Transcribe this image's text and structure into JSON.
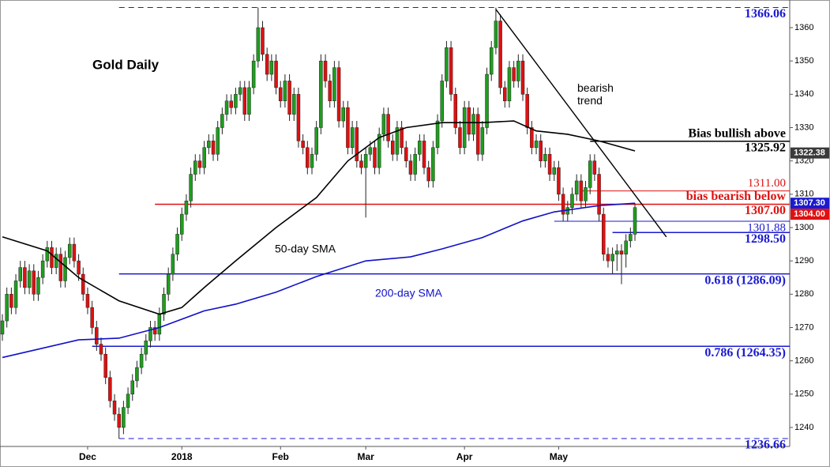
{
  "chart_data": {
    "type": "candlestick",
    "title": "Gold Daily",
    "xlim": [
      -0.53,
      175.5
    ],
    "ylim": [
      1234.3,
      1368.3
    ],
    "yticks": [
      1240,
      1250,
      1260,
      1270,
      1280,
      1290,
      1300,
      1310,
      1320,
      1330,
      1340,
      1350,
      1360
    ],
    "xticks": [
      {
        "value": 19,
        "label": "Dec"
      },
      {
        "value": 40,
        "label": "2018"
      },
      {
        "value": 62,
        "label": "Feb"
      },
      {
        "value": 81,
        "label": "Mar"
      },
      {
        "value": 103,
        "label": "Apr"
      },
      {
        "value": 124,
        "label": "May"
      }
    ],
    "up_color": "#1e9e1e",
    "down_color": "#e01010",
    "x": [
      0,
      1,
      2,
      3,
      4,
      5,
      6,
      7,
      8,
      9,
      10,
      11,
      12,
      13,
      14,
      15,
      16,
      17,
      18,
      19,
      20,
      21,
      22,
      23,
      24,
      25,
      26,
      27,
      28,
      29,
      30,
      31,
      32,
      33,
      34,
      35,
      36,
      37,
      38,
      39,
      40,
      41,
      42,
      43,
      44,
      45,
      46,
      47,
      48,
      49,
      50,
      51,
      52,
      53,
      54,
      55,
      56,
      57,
      58,
      59,
      60,
      61,
      62,
      63,
      64,
      65,
      66,
      67,
      68,
      69,
      70,
      71,
      72,
      73,
      74,
      75,
      76,
      77,
      78,
      79,
      80,
      81,
      82,
      83,
      84,
      85,
      86,
      87,
      88,
      89,
      90,
      91,
      92,
      93,
      94,
      95,
      96,
      97,
      98,
      99,
      100,
      101,
      102,
      103,
      104,
      105,
      106,
      107,
      108,
      109,
      110,
      111,
      112,
      113,
      114,
      115,
      116,
      117,
      118,
      119,
      120,
      121,
      122,
      123,
      124,
      125,
      126,
      127,
      128,
      129,
      130,
      131,
      132,
      133,
      134,
      135,
      136,
      137,
      138,
      139,
      140,
      141
    ],
    "candles": [
      [
        1268,
        1274,
        1266,
        1272
      ],
      [
        1272,
        1282,
        1270,
        1280
      ],
      [
        1280,
        1282,
        1274,
        1276
      ],
      [
        1276,
        1286,
        1274,
        1284
      ],
      [
        1284,
        1290,
        1282,
        1288
      ],
      [
        1288,
        1290,
        1280,
        1282
      ],
      [
        1282,
        1289,
        1280,
        1287
      ],
      [
        1287,
        1289,
        1278,
        1280
      ],
      [
        1280,
        1287,
        1278,
        1285
      ],
      [
        1285,
        1292,
        1283,
        1290
      ],
      [
        1290,
        1296,
        1288,
        1294
      ],
      [
        1294,
        1296,
        1286,
        1288
      ],
      [
        1288,
        1294,
        1286,
        1292
      ],
      [
        1292,
        1294,
        1282,
        1284
      ],
      [
        1284,
        1293,
        1282,
        1291
      ],
      [
        1291,
        1297,
        1289,
        1295
      ],
      [
        1295,
        1297,
        1288,
        1290
      ],
      [
        1290,
        1292,
        1284,
        1286
      ],
      [
        1286,
        1288,
        1278,
        1280
      ],
      [
        1280,
        1282,
        1274,
        1276
      ],
      [
        1276,
        1278,
        1268,
        1270
      ],
      [
        1270,
        1272,
        1263,
        1265
      ],
      [
        1265,
        1267,
        1260,
        1262
      ],
      [
        1262,
        1264,
        1253,
        1255
      ],
      [
        1255,
        1257,
        1246,
        1248
      ],
      [
        1248,
        1250,
        1242,
        1244
      ],
      [
        1244,
        1246,
        1236.66,
        1240
      ],
      [
        1240,
        1248,
        1238,
        1246
      ],
      [
        1246,
        1252,
        1244,
        1250
      ],
      [
        1250,
        1256,
        1248,
        1254
      ],
      [
        1254,
        1260,
        1252,
        1258
      ],
      [
        1258,
        1264,
        1256,
        1262
      ],
      [
        1262,
        1268,
        1260,
        1266
      ],
      [
        1266,
        1272,
        1264,
        1270
      ],
      [
        1270,
        1272,
        1266,
        1268
      ],
      [
        1268,
        1276,
        1266,
        1274
      ],
      [
        1274,
        1282,
        1272,
        1280
      ],
      [
        1280,
        1288,
        1278,
        1286
      ],
      [
        1286,
        1294,
        1284,
        1292
      ],
      [
        1292,
        1300,
        1290,
        1298
      ],
      [
        1298,
        1306,
        1296,
        1304
      ],
      [
        1304,
        1310,
        1302,
        1308
      ],
      [
        1308,
        1318,
        1306,
        1316
      ],
      [
        1316,
        1322,
        1314,
        1320
      ],
      [
        1320,
        1322,
        1316,
        1318
      ],
      [
        1318,
        1326,
        1316,
        1324
      ],
      [
        1324,
        1328,
        1322,
        1326
      ],
      [
        1326,
        1328,
        1320,
        1322
      ],
      [
        1322,
        1332,
        1320,
        1330
      ],
      [
        1330,
        1336,
        1328,
        1334
      ],
      [
        1334,
        1340,
        1332,
        1338
      ],
      [
        1338,
        1340,
        1334,
        1336
      ],
      [
        1336,
        1342,
        1334,
        1340
      ],
      [
        1340,
        1344,
        1338,
        1342
      ],
      [
        1342,
        1344,
        1332,
        1334
      ],
      [
        1334,
        1344,
        1332,
        1342
      ],
      [
        1342,
        1352,
        1340,
        1350
      ],
      [
        1350,
        1366.06,
        1348,
        1360
      ],
      [
        1360,
        1362,
        1350,
        1352
      ],
      [
        1352,
        1354,
        1344,
        1346
      ],
      [
        1346,
        1352,
        1344,
        1350
      ],
      [
        1350,
        1352,
        1340,
        1342
      ],
      [
        1342,
        1344,
        1336,
        1338
      ],
      [
        1338,
        1346,
        1336,
        1344
      ],
      [
        1344,
        1346,
        1332,
        1334
      ],
      [
        1334,
        1342,
        1332,
        1340
      ],
      [
        1340,
        1342,
        1324,
        1326
      ],
      [
        1326,
        1328,
        1322,
        1324
      ],
      [
        1324,
        1326,
        1316,
        1318
      ],
      [
        1318,
        1324,
        1316,
        1322
      ],
      [
        1322,
        1332,
        1320,
        1330
      ],
      [
        1330,
        1352,
        1328,
        1350
      ],
      [
        1350,
        1352,
        1342,
        1344
      ],
      [
        1344,
        1346,
        1336,
        1338
      ],
      [
        1338,
        1350,
        1336,
        1348
      ],
      [
        1348,
        1350,
        1330,
        1332
      ],
      [
        1332,
        1338,
        1330,
        1336
      ],
      [
        1336,
        1338,
        1322,
        1324
      ],
      [
        1324,
        1332,
        1322,
        1330
      ],
      [
        1330,
        1332,
        1318,
        1320
      ],
      [
        1320,
        1322,
        1316,
        1318
      ],
      [
        1318,
        1324,
        1303,
        1322
      ],
      [
        1322,
        1326,
        1320,
        1324
      ],
      [
        1324,
        1326,
        1316,
        1318
      ],
      [
        1318,
        1330,
        1316,
        1328
      ],
      [
        1328,
        1336,
        1326,
        1334
      ],
      [
        1334,
        1336,
        1324,
        1326
      ],
      [
        1326,
        1328,
        1320,
        1322
      ],
      [
        1322,
        1332,
        1320,
        1330
      ],
      [
        1330,
        1332,
        1322,
        1324
      ],
      [
        1324,
        1326,
        1318,
        1320
      ],
      [
        1320,
        1322,
        1314,
        1316
      ],
      [
        1316,
        1324,
        1314,
        1322
      ],
      [
        1322,
        1328,
        1320,
        1326
      ],
      [
        1326,
        1328,
        1316,
        1318
      ],
      [
        1318,
        1320,
        1312,
        1314
      ],
      [
        1314,
        1326,
        1312,
        1324
      ],
      [
        1324,
        1334,
        1322,
        1332
      ],
      [
        1332,
        1346,
        1330,
        1344
      ],
      [
        1344,
        1356,
        1342,
        1354
      ],
      [
        1354,
        1356,
        1338,
        1340
      ],
      [
        1340,
        1342,
        1328,
        1330
      ],
      [
        1330,
        1332,
        1322,
        1324
      ],
      [
        1324,
        1338,
        1322,
        1336
      ],
      [
        1336,
        1338,
        1326,
        1328
      ],
      [
        1328,
        1336,
        1326,
        1334
      ],
      [
        1334,
        1336,
        1320,
        1322
      ],
      [
        1322,
        1332,
        1320,
        1330
      ],
      [
        1330,
        1348,
        1328,
        1346
      ],
      [
        1346,
        1356,
        1344,
        1354
      ],
      [
        1354,
        1366,
        1352,
        1362
      ],
      [
        1362,
        1364,
        1340,
        1342
      ],
      [
        1342,
        1344,
        1336,
        1338
      ],
      [
        1338,
        1350,
        1336,
        1348
      ],
      [
        1348,
        1350,
        1342,
        1344
      ],
      [
        1344,
        1352,
        1342,
        1350
      ],
      [
        1350,
        1352,
        1338,
        1340
      ],
      [
        1340,
        1342,
        1328,
        1330
      ],
      [
        1330,
        1332,
        1322,
        1324
      ],
      [
        1324,
        1328,
        1322,
        1326
      ],
      [
        1326,
        1328,
        1318,
        1320
      ],
      [
        1320,
        1324,
        1318,
        1322
      ],
      [
        1322,
        1324,
        1314,
        1316
      ],
      [
        1316,
        1320,
        1314,
        1318
      ],
      [
        1318,
        1320,
        1308,
        1310
      ],
      [
        1310,
        1312,
        1301.88,
        1304
      ],
      [
        1304,
        1308,
        1302,
        1306
      ],
      [
        1306,
        1312,
        1304,
        1310
      ],
      [
        1310,
        1316,
        1308,
        1314
      ],
      [
        1314,
        1316,
        1306,
        1308
      ],
      [
        1308,
        1314,
        1306,
        1312
      ],
      [
        1312,
        1322,
        1310,
        1320
      ],
      [
        1320,
        1322,
        1314,
        1316
      ],
      [
        1316,
        1318,
        1302,
        1304
      ],
      [
        1304,
        1306,
        1290,
        1292
      ],
      [
        1292,
        1294,
        1288,
        1290
      ],
      [
        1290,
        1294,
        1286,
        1292
      ],
      [
        1292,
        1295,
        1287,
        1293
      ],
      [
        1293,
        1295,
        1283,
        1292
      ],
      [
        1292,
        1298,
        1288,
        1296
      ],
      [
        1296,
        1300,
        1294,
        1298
      ],
      [
        1298,
        1307.3,
        1296,
        1306
      ]
    ],
    "lines": [
      {
        "name": "50-day SMA",
        "color": "#000000",
        "x": [
          0,
          10,
          17,
          26,
          35,
          40,
          45,
          52,
          61,
          70,
          77,
          84,
          90,
          98,
          107,
          114,
          119,
          126,
          133,
          141
        ],
        "values": [
          1297.2,
          1293,
          1285,
          1278,
          1274,
          1276,
          1282,
          1290,
          1300,
          1309,
          1320,
          1327,
          1330,
          1331.5,
          1331.5,
          1332,
          1329,
          1328,
          1326,
          1323
        ]
      },
      {
        "name": "200-day SMA",
        "color": "#1010c8",
        "x": [
          0,
          17,
          26,
          35,
          45,
          52,
          61,
          70,
          81,
          91,
          98,
          107,
          116,
          123,
          133,
          141
        ],
        "values": [
          1261,
          1266.3,
          1266.8,
          1270,
          1275,
          1277,
          1280.6,
          1285.3,
          1290,
          1291.2,
          1293.6,
          1297,
          1302,
          1304.7,
          1306.6,
          1307.3
        ]
      }
    ],
    "trendline": {
      "name": "bearish trend",
      "color": "#000000",
      "x": [
        110,
        148
      ],
      "values": [
        1365.5,
        1297.2
      ]
    },
    "levels": [
      {
        "value": 1366.06,
        "label": "1366.06",
        "from": 26,
        "color": "#1a1ad0",
        "style": "dashed",
        "bold": true
      },
      {
        "value": 1325.92,
        "label": "1325.92",
        "note": "Bias bullish above",
        "from": 131,
        "color": "#000000",
        "bold": true
      },
      {
        "value": 1311.0,
        "label": "1311.00",
        "from": 129,
        "color": "#e01010",
        "label_side": "above"
      },
      {
        "value": 1307.0,
        "label": "1307.00",
        "note": "bias bearish below",
        "from": 34,
        "color": "#e01010",
        "bold": true
      },
      {
        "value": 1301.88,
        "label": "1301.88",
        "from": 123,
        "color": "#1a1ad0"
      },
      {
        "value": 1298.5,
        "label": "1298.50",
        "from": 136,
        "color": "#1a1ad0",
        "bold": true
      },
      {
        "value": 1286.09,
        "label": "0.618 (1286.09)",
        "from": 26,
        "color": "#1a1ad0",
        "bold": true
      },
      {
        "value": 1264.35,
        "label": "0.786 (1264.35)",
        "from": 20,
        "color": "#1a1ad0",
        "bold": true
      },
      {
        "value": 1236.66,
        "label": "1236.66",
        "from": 26,
        "color": "#1a1ad0",
        "style": "dashed",
        "bold": true
      }
    ],
    "price_tags": [
      {
        "value": 1322.38,
        "label": "1322.38",
        "color": "#3a3a3a"
      },
      {
        "value": 1307.3,
        "label": "1307.30",
        "color": "#1a1ad0"
      },
      {
        "value": 1304.0,
        "label": "1304.00",
        "color": "#e01010"
      }
    ]
  }
}
